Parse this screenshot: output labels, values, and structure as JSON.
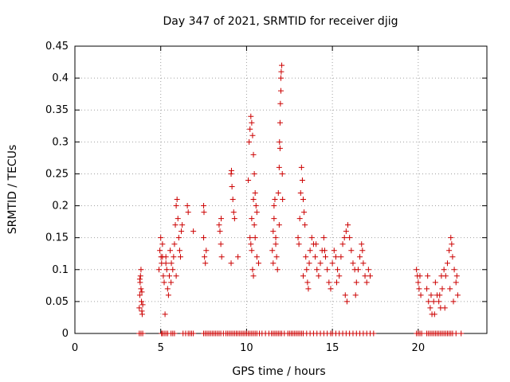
{
  "chart_data": {
    "type": "scatter",
    "title": "Day 347 of 2021, SRMTID for receiver djig",
    "xlabel": "GPS time / hours",
    "ylabel": "SRMTID / TECUs",
    "xlim": [
      0,
      24
    ],
    "ylim": [
      0,
      0.45
    ],
    "x_ticks": [
      0,
      5,
      10,
      15,
      20
    ],
    "x_tick_labels": [
      "0",
      "5",
      "10",
      "15",
      "20"
    ],
    "y_ticks": [
      0,
      0.05,
      0.1,
      0.15,
      0.2,
      0.25,
      0.3,
      0.35,
      0.4,
      0.45
    ],
    "y_tick_labels": [
      "0",
      "0.05",
      "0.1",
      "0.15",
      "0.2",
      "0.25",
      "0.3",
      "0.35",
      "0.4",
      "0.45"
    ],
    "grid": true,
    "marker": "+",
    "color": "#cc0000",
    "series": [
      {
        "name": "SRMTID",
        "points": [
          [
            3.75,
            0.04
          ],
          [
            3.78,
            0.06
          ],
          [
            3.8,
            0.08
          ],
          [
            3.82,
            0.09
          ],
          [
            3.85,
            0.07
          ],
          [
            3.88,
            0.05
          ],
          [
            3.9,
            0.035
          ],
          [
            3.92,
            0.03
          ],
          [
            3.95,
            0.045
          ],
          [
            3.85,
            0.1
          ],
          [
            3.78,
            0.085
          ],
          [
            3.9,
            0.065
          ],
          [
            4.9,
            0.1
          ],
          [
            4.95,
            0.13
          ],
          [
            5.0,
            0.15
          ],
          [
            5.02,
            0.12
          ],
          [
            5.05,
            0.11
          ],
          [
            5.1,
            0.14
          ],
          [
            5.15,
            0.09
          ],
          [
            5.2,
            0.08
          ],
          [
            5.25,
            0.03
          ],
          [
            5.3,
            0.12
          ],
          [
            5.35,
            0.1
          ],
          [
            5.4,
            0.07
          ],
          [
            5.45,
            0.06
          ],
          [
            5.5,
            0.09
          ],
          [
            5.55,
            0.13
          ],
          [
            5.6,
            0.08
          ],
          [
            5.62,
            0.11
          ],
          [
            5.7,
            0.1
          ],
          [
            5.8,
            0.14
          ],
          [
            5.85,
            0.17
          ],
          [
            5.9,
            0.2
          ],
          [
            5.95,
            0.21
          ],
          [
            6.0,
            0.18
          ],
          [
            6.05,
            0.15
          ],
          [
            6.1,
            0.13
          ],
          [
            6.15,
            0.12
          ],
          [
            6.2,
            0.16
          ],
          [
            6.25,
            0.17
          ],
          [
            5.9,
            0.09
          ],
          [
            5.75,
            0.12
          ],
          [
            5.3,
            0.11
          ],
          [
            5.1,
            0.12
          ],
          [
            6.55,
            0.2
          ],
          [
            6.6,
            0.19
          ],
          [
            6.9,
            0.16
          ],
          [
            7.5,
            0.2
          ],
          [
            7.52,
            0.19
          ],
          [
            7.55,
            0.12
          ],
          [
            7.6,
            0.11
          ],
          [
            7.65,
            0.13
          ],
          [
            7.5,
            0.15
          ],
          [
            8.4,
            0.17
          ],
          [
            8.45,
            0.16
          ],
          [
            8.5,
            0.14
          ],
          [
            8.52,
            0.18
          ],
          [
            8.55,
            0.12
          ],
          [
            9.1,
            0.25
          ],
          [
            9.12,
            0.255
          ],
          [
            9.15,
            0.23
          ],
          [
            9.2,
            0.21
          ],
          [
            9.25,
            0.19
          ],
          [
            9.3,
            0.18
          ],
          [
            9.1,
            0.11
          ],
          [
            9.5,
            0.12
          ],
          [
            10.1,
            0.24
          ],
          [
            10.15,
            0.3
          ],
          [
            10.2,
            0.32
          ],
          [
            10.25,
            0.34
          ],
          [
            10.3,
            0.33
          ],
          [
            10.35,
            0.31
          ],
          [
            10.4,
            0.28
          ],
          [
            10.45,
            0.25
          ],
          [
            10.5,
            0.22
          ],
          [
            10.55,
            0.2
          ],
          [
            10.6,
            0.19
          ],
          [
            10.2,
            0.15
          ],
          [
            10.25,
            0.14
          ],
          [
            10.3,
            0.13
          ],
          [
            10.35,
            0.1
          ],
          [
            10.4,
            0.09
          ],
          [
            10.45,
            0.17
          ],
          [
            10.5,
            0.15
          ],
          [
            10.6,
            0.12
          ],
          [
            10.7,
            0.11
          ],
          [
            10.3,
            0.18
          ],
          [
            10.4,
            0.21
          ],
          [
            11.5,
            0.13
          ],
          [
            11.55,
            0.16
          ],
          [
            11.6,
            0.2
          ],
          [
            11.65,
            0.21
          ],
          [
            11.7,
            0.15
          ],
          [
            11.75,
            0.12
          ],
          [
            11.8,
            0.1
          ],
          [
            11.85,
            0.22
          ],
          [
            11.9,
            0.26
          ],
          [
            11.92,
            0.3
          ],
          [
            11.95,
            0.33
          ],
          [
            11.97,
            0.36
          ],
          [
            12.0,
            0.4
          ],
          [
            12.02,
            0.41
          ],
          [
            12.05,
            0.42
          ],
          [
            12.0,
            0.38
          ],
          [
            12.08,
            0.25
          ],
          [
            12.1,
            0.21
          ],
          [
            11.6,
            0.18
          ],
          [
            11.7,
            0.14
          ],
          [
            11.9,
            0.17
          ],
          [
            11.55,
            0.11
          ],
          [
            11.95,
            0.29
          ],
          [
            13.0,
            0.15
          ],
          [
            13.05,
            0.14
          ],
          [
            13.1,
            0.18
          ],
          [
            13.15,
            0.22
          ],
          [
            13.2,
            0.26
          ],
          [
            13.25,
            0.24
          ],
          [
            13.3,
            0.21
          ],
          [
            13.35,
            0.19
          ],
          [
            13.4,
            0.17
          ],
          [
            13.45,
            0.12
          ],
          [
            13.5,
            0.1
          ],
          [
            13.55,
            0.08
          ],
          [
            13.6,
            0.07
          ],
          [
            13.65,
            0.11
          ],
          [
            13.7,
            0.13
          ],
          [
            13.8,
            0.15
          ],
          [
            13.9,
            0.14
          ],
          [
            14.0,
            0.12
          ],
          [
            14.1,
            0.1
          ],
          [
            14.2,
            0.09
          ],
          [
            14.3,
            0.11
          ],
          [
            14.4,
            0.13
          ],
          [
            14.5,
            0.15
          ],
          [
            14.6,
            0.12
          ],
          [
            14.7,
            0.1
          ],
          [
            14.8,
            0.08
          ],
          [
            14.9,
            0.07
          ],
          [
            15.0,
            0.11
          ],
          [
            15.1,
            0.13
          ],
          [
            15.2,
            0.12
          ],
          [
            15.3,
            0.1
          ],
          [
            15.4,
            0.09
          ],
          [
            15.5,
            0.12
          ],
          [
            15.6,
            0.14
          ],
          [
            15.7,
            0.15
          ],
          [
            15.8,
            0.16
          ],
          [
            15.9,
            0.17
          ],
          [
            16.0,
            0.15
          ],
          [
            16.1,
            0.13
          ],
          [
            16.2,
            0.11
          ],
          [
            16.3,
            0.1
          ],
          [
            16.4,
            0.08
          ],
          [
            16.5,
            0.1
          ],
          [
            16.6,
            0.12
          ],
          [
            16.7,
            0.14
          ],
          [
            16.8,
            0.11
          ],
          [
            16.9,
            0.09
          ],
          [
            17.0,
            0.08
          ],
          [
            17.1,
            0.1
          ],
          [
            17.2,
            0.09
          ],
          [
            15.75,
            0.06
          ],
          [
            15.85,
            0.05
          ],
          [
            13.3,
            0.09
          ],
          [
            14.05,
            0.14
          ],
          [
            14.55,
            0.13
          ],
          [
            15.25,
            0.08
          ],
          [
            16.35,
            0.06
          ],
          [
            16.75,
            0.13
          ],
          [
            19.9,
            0.1
          ],
          [
            19.95,
            0.09
          ],
          [
            20.0,
            0.08
          ],
          [
            20.05,
            0.07
          ],
          [
            20.1,
            0.09
          ],
          [
            20.15,
            0.06
          ],
          [
            20.5,
            0.07
          ],
          [
            20.6,
            0.05
          ],
          [
            20.7,
            0.04
          ],
          [
            20.8,
            0.03
          ],
          [
            20.9,
            0.05
          ],
          [
            21.0,
            0.08
          ],
          [
            21.1,
            0.06
          ],
          [
            21.2,
            0.05
          ],
          [
            21.3,
            0.04
          ],
          [
            21.4,
            0.07
          ],
          [
            21.5,
            0.1
          ],
          [
            21.6,
            0.09
          ],
          [
            21.7,
            0.11
          ],
          [
            21.8,
            0.13
          ],
          [
            21.9,
            0.15
          ],
          [
            22.0,
            0.12
          ],
          [
            22.1,
            0.1
          ],
          [
            22.2,
            0.08
          ],
          [
            22.3,
            0.06
          ],
          [
            20.95,
            0.03
          ],
          [
            21.25,
            0.06
          ],
          [
            21.55,
            0.04
          ],
          [
            21.85,
            0.07
          ],
          [
            22.05,
            0.05
          ],
          [
            22.25,
            0.09
          ],
          [
            20.55,
            0.09
          ],
          [
            20.75,
            0.06
          ],
          [
            21.35,
            0.09
          ],
          [
            21.95,
            0.14
          ],
          [
            3.75,
            0
          ],
          [
            3.85,
            0
          ],
          [
            3.95,
            0
          ],
          [
            5.05,
            0
          ],
          [
            5.1,
            0
          ],
          [
            5.2,
            0
          ],
          [
            5.3,
            0
          ],
          [
            5.4,
            0
          ],
          [
            5.6,
            0
          ],
          [
            5.7,
            0
          ],
          [
            5.8,
            0
          ],
          [
            6.3,
            0
          ],
          [
            6.45,
            0
          ],
          [
            6.6,
            0
          ],
          [
            6.7,
            0
          ],
          [
            6.8,
            0
          ],
          [
            6.9,
            0
          ],
          [
            7.5,
            0
          ],
          [
            7.6,
            0
          ],
          [
            7.7,
            0
          ],
          [
            7.8,
            0
          ],
          [
            7.9,
            0
          ],
          [
            8.0,
            0
          ],
          [
            8.1,
            0
          ],
          [
            8.2,
            0
          ],
          [
            8.3,
            0
          ],
          [
            8.4,
            0
          ],
          [
            8.5,
            0
          ],
          [
            8.65,
            0
          ],
          [
            8.8,
            0
          ],
          [
            8.9,
            0
          ],
          [
            9.0,
            0
          ],
          [
            9.1,
            0
          ],
          [
            9.2,
            0
          ],
          [
            9.3,
            0
          ],
          [
            9.4,
            0
          ],
          [
            9.5,
            0
          ],
          [
            9.6,
            0
          ],
          [
            9.7,
            0
          ],
          [
            9.8,
            0
          ],
          [
            9.9,
            0
          ],
          [
            10.0,
            0
          ],
          [
            10.1,
            0
          ],
          [
            10.2,
            0
          ],
          [
            10.3,
            0
          ],
          [
            10.4,
            0
          ],
          [
            10.5,
            0
          ],
          [
            10.6,
            0
          ],
          [
            10.75,
            0
          ],
          [
            10.9,
            0
          ],
          [
            11.1,
            0
          ],
          [
            11.3,
            0
          ],
          [
            11.45,
            0
          ],
          [
            11.55,
            0
          ],
          [
            11.65,
            0
          ],
          [
            11.75,
            0
          ],
          [
            11.85,
            0
          ],
          [
            11.95,
            0
          ],
          [
            12.05,
            0
          ],
          [
            12.2,
            0
          ],
          [
            12.4,
            0
          ],
          [
            12.5,
            0
          ],
          [
            12.6,
            0
          ],
          [
            12.7,
            0
          ],
          [
            12.8,
            0
          ],
          [
            12.9,
            0
          ],
          [
            13.0,
            0
          ],
          [
            13.1,
            0
          ],
          [
            13.2,
            0
          ],
          [
            13.3,
            0
          ],
          [
            13.5,
            0
          ],
          [
            13.7,
            0
          ],
          [
            13.9,
            0
          ],
          [
            14.1,
            0
          ],
          [
            14.3,
            0
          ],
          [
            14.5,
            0
          ],
          [
            14.7,
            0
          ],
          [
            14.9,
            0
          ],
          [
            15.0,
            0
          ],
          [
            15.2,
            0
          ],
          [
            15.4,
            0
          ],
          [
            15.6,
            0
          ],
          [
            15.8,
            0
          ],
          [
            16.0,
            0
          ],
          [
            16.2,
            0
          ],
          [
            16.4,
            0
          ],
          [
            16.6,
            0
          ],
          [
            16.8,
            0
          ],
          [
            17.0,
            0
          ],
          [
            17.2,
            0
          ],
          [
            17.4,
            0
          ],
          [
            19.9,
            0
          ],
          [
            20.0,
            0
          ],
          [
            20.1,
            0
          ],
          [
            20.2,
            0
          ],
          [
            20.5,
            0
          ],
          [
            20.6,
            0
          ],
          [
            20.7,
            0
          ],
          [
            20.8,
            0
          ],
          [
            20.9,
            0
          ],
          [
            21.0,
            0
          ],
          [
            21.1,
            0
          ],
          [
            21.2,
            0
          ],
          [
            21.3,
            0
          ],
          [
            21.4,
            0
          ],
          [
            21.5,
            0
          ],
          [
            21.6,
            0
          ],
          [
            21.7,
            0
          ],
          [
            21.8,
            0
          ],
          [
            21.9,
            0
          ],
          [
            22.0,
            0
          ],
          [
            22.2,
            0
          ],
          [
            22.5,
            0
          ]
        ]
      }
    ]
  }
}
